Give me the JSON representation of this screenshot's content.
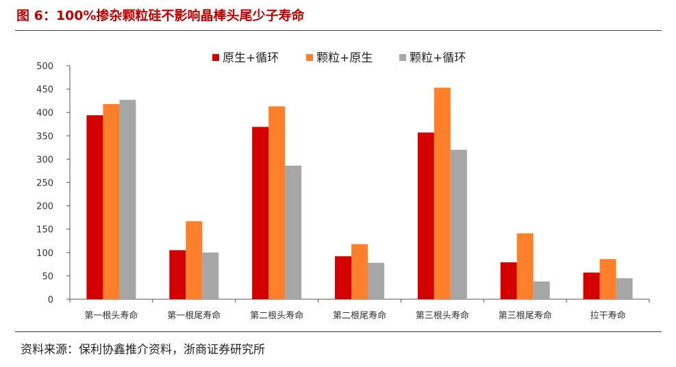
{
  "title": "图 6：100%掺杂颗粒硅不影响晶棒头尾少子寿命",
  "source": "资料来源：保利协鑫推介资料，浙商证券研究所",
  "chart_data": {
    "type": "bar",
    "categories": [
      "第一根头寿命",
      "第一根尾寿命",
      "第二根头寿命",
      "第二根尾寿命",
      "第三根头寿命",
      "第三根尾寿命",
      "拉干寿命"
    ],
    "series": [
      {
        "name": "原生+循环",
        "color": "#d40000",
        "values": [
          394,
          105,
          369,
          92,
          357,
          79,
          57
        ]
      },
      {
        "name": "颗粒+原生",
        "color": "#ff7f2a",
        "values": [
          418,
          167,
          413,
          118,
          453,
          141,
          86
        ]
      },
      {
        "name": "颗粒+循环",
        "color": "#a6a6a6",
        "values": [
          427,
          100,
          286,
          78,
          320,
          38,
          45
        ]
      }
    ],
    "yticks": [
      "0",
      "50",
      "100",
      "150",
      "200",
      "250",
      "300",
      "350",
      "400",
      "450",
      "500"
    ],
    "ylim": [
      0,
      500
    ],
    "grid": false,
    "legend_position": "top"
  }
}
